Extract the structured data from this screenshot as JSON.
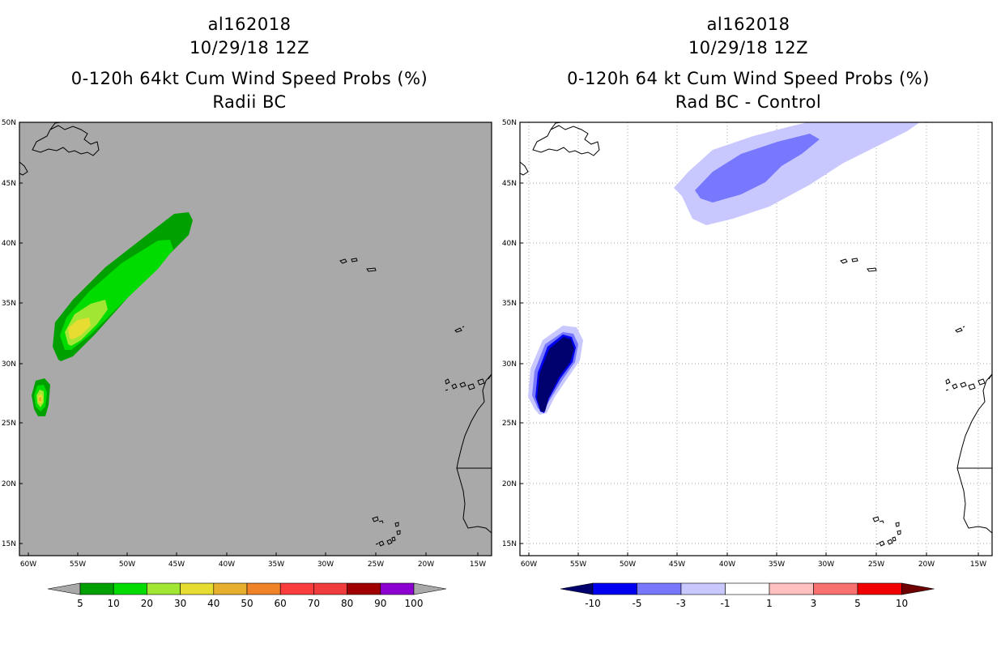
{
  "left_panel": {
    "title_line1": "al162018",
    "title_line2": "10/29/18 12Z",
    "title_line3": "0-120h 64kt Cum Wind Speed Probs (%)",
    "title_line4": "Radii BC",
    "colorbar_labels": [
      "5",
      "10",
      "20",
      "30",
      "40",
      "50",
      "60",
      "70",
      "80",
      "90",
      "100"
    ],
    "colorbar_colors": [
      "#00a000",
      "#00dc00",
      "#a0e632",
      "#e6dc32",
      "#e6af2d",
      "#f08228",
      "#fa3c3c",
      "#f03c3c",
      "#a00000",
      "#8c00d2"
    ],
    "background_color": "#a9a9a9"
  },
  "right_panel": {
    "title_line1": "al162018",
    "title_line2": "10/29/18 12Z",
    "title_line3": "0-120h 64 kt Cum Wind Speed Probs (%)",
    "title_line4": "Rad BC - Control",
    "colorbar_labels": [
      "-10",
      "-5",
      "-3",
      "-1",
      "1",
      "3",
      "5",
      "10"
    ],
    "colorbar_colors": [
      "#0000f0",
      "#7878ff",
      "#c8c8ff",
      "#ffffff",
      "#ffc0c0",
      "#f87070",
      "#f00000"
    ],
    "colorbar_end_colors": [
      "#00006e",
      "#6e0000"
    ]
  },
  "map_axes": {
    "lat_labels": [
      "50N",
      "45N",
      "40N",
      "35N",
      "30N",
      "25N",
      "20N",
      "15N"
    ],
    "lon_labels": [
      "60W",
      "55W",
      "50W",
      "45W",
      "40W",
      "35W",
      "30W",
      "25W",
      "20W",
      "15W"
    ]
  }
}
